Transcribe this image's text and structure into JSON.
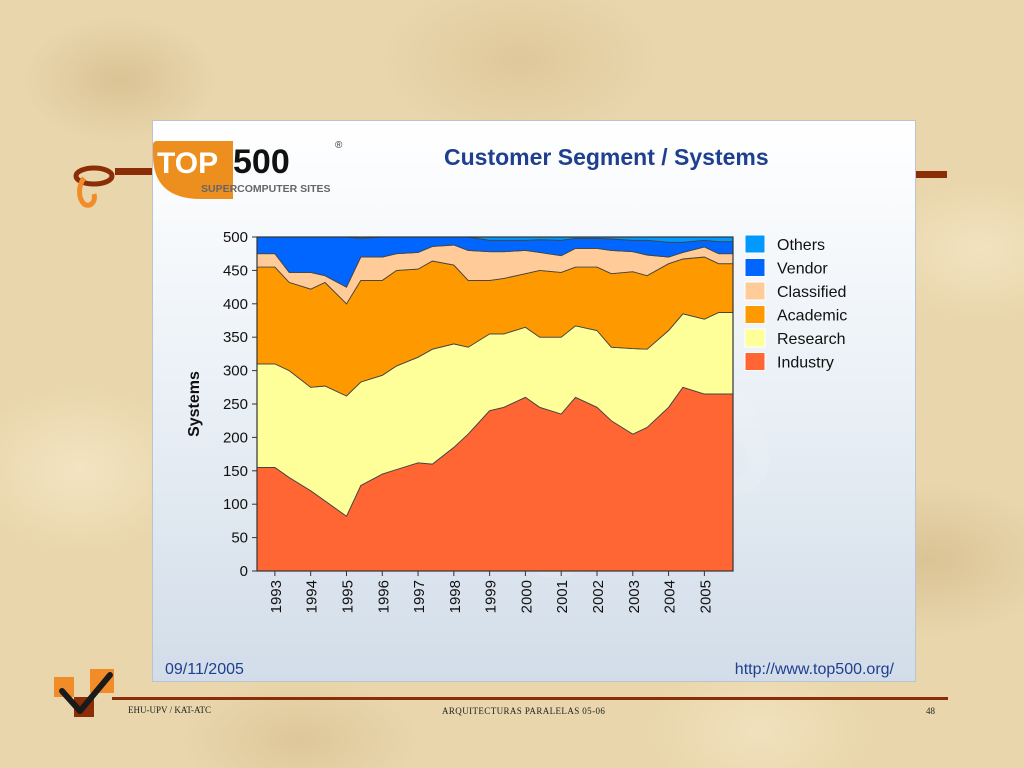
{
  "slide": {
    "footer_left": "EHU-UPV / KAT-ATC",
    "footer_center": "ARQUITECTURAS PARALELAS 05-06",
    "page_number": "48"
  },
  "logo": {
    "text_top": "TOP",
    "text_500": "500",
    "registered_mark": "®",
    "subtitle": "SUPERCOMPUTER SITES"
  },
  "chart_meta": {
    "date": "09/11/2005",
    "url": "http://www.top500.org/"
  },
  "colors": {
    "Industry": "#ff6633",
    "Research": "#ffff99",
    "Academic": "#ff9900",
    "Classified": "#ffcc99",
    "Vendor": "#0066ff",
    "Others": "#0099ff"
  },
  "chart_data": {
    "type": "area",
    "stacked": true,
    "title": "Customer Segment / Systems",
    "xlabel": "",
    "ylabel": "Systems",
    "ylim": [
      0,
      500
    ],
    "yticks": [
      "0",
      "50",
      "100",
      "150",
      "200",
      "250",
      "300",
      "350",
      "400",
      "450",
      "500"
    ],
    "xticks": [
      "1993",
      "1994",
      "1995",
      "1996",
      "1997",
      "1998",
      "1999",
      "2000",
      "2001",
      "2002",
      "2003",
      "2004",
      "2005"
    ],
    "x": [
      1993.5,
      1993.9,
      1994.5,
      1994.9,
      1995.5,
      1995.9,
      1996.5,
      1996.9,
      1997.5,
      1997.9,
      1998.5,
      1998.9,
      1999.5,
      1999.9,
      2000.5,
      2000.9,
      2001.5,
      2001.9,
      2002.5,
      2002.9,
      2003.5,
      2003.9,
      2004.5,
      2004.9,
      2005.5,
      2005.9
    ],
    "legend_position": "right",
    "grid": false,
    "series": [
      {
        "name": "Industry",
        "values": [
          155,
          140,
          120,
          105,
          82,
          128,
          145,
          152,
          162,
          160,
          185,
          205,
          240,
          245,
          260,
          245,
          235,
          260,
          245,
          225,
          205,
          215,
          245,
          275,
          265,
          265
        ]
      },
      {
        "name": "Research",
        "values": [
          155,
          160,
          155,
          172,
          180,
          155,
          148,
          155,
          158,
          172,
          155,
          130,
          115,
          110,
          105,
          105,
          115,
          107,
          115,
          110,
          128,
          117,
          115,
          110,
          112,
          122
        ]
      },
      {
        "name": "Academic",
        "values": [
          145,
          132,
          147,
          155,
          138,
          152,
          142,
          143,
          132,
          132,
          118,
          100,
          80,
          83,
          80,
          100,
          97,
          88,
          95,
          110,
          115,
          110,
          100,
          82,
          93,
          73
        ]
      },
      {
        "name": "Classified",
        "values": [
          20,
          15,
          25,
          10,
          25,
          35,
          35,
          25,
          25,
          22,
          30,
          45,
          43,
          40,
          35,
          27,
          25,
          28,
          28,
          35,
          30,
          31,
          10,
          10,
          15,
          15
        ]
      },
      {
        "name": "Vendor",
        "values": [
          25,
          53,
          53,
          58,
          75,
          28,
          30,
          25,
          23,
          14,
          12,
          20,
          17,
          17,
          15,
          19,
          23,
          15,
          15,
          17,
          17,
          22,
          22,
          15,
          10,
          18
        ]
      },
      {
        "name": "Others",
        "values": [
          0,
          0,
          0,
          0,
          0,
          2,
          0,
          0,
          0,
          0,
          0,
          0,
          5,
          5,
          5,
          4,
          5,
          2,
          2,
          3,
          5,
          5,
          8,
          8,
          5,
          7
        ]
      }
    ]
  }
}
